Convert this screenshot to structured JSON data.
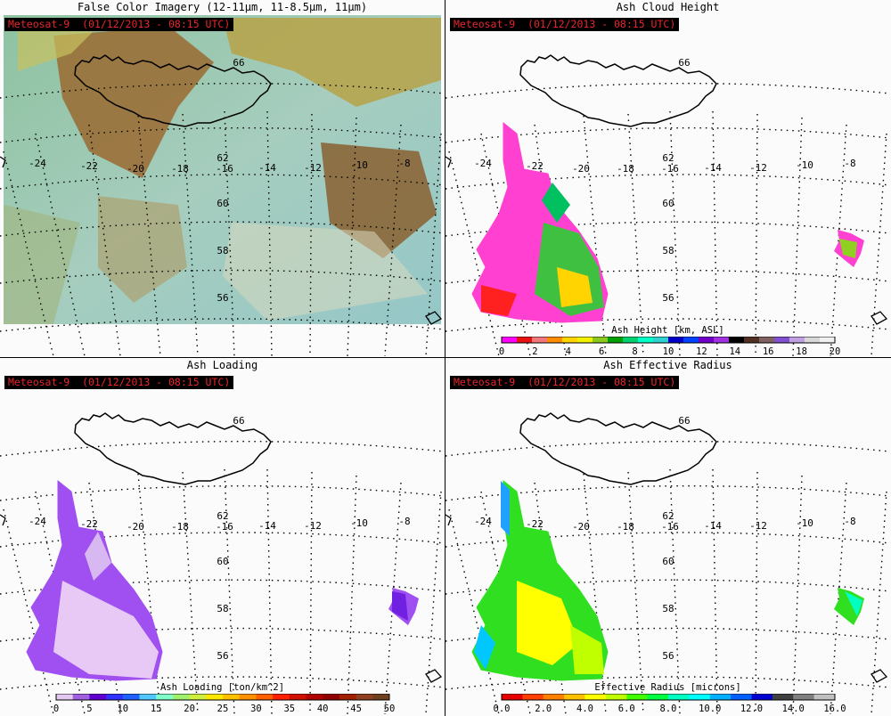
{
  "panels": [
    {
      "id": "false-color",
      "title": "False Color Imagery (12-11μm, 11-8.5μm, 11μm)",
      "satellite_label": "Meteosat-9  (01/12/2013 - 08:15 UTC)",
      "colorbar": null
    },
    {
      "id": "ash-height",
      "title": "Ash Cloud Height",
      "satellite_label": "Meteosat-9  (01/12/2013 - 08:15 UTC)",
      "colorbar": {
        "title": "Ash Height [km, ASL]",
        "ticks": [
          "0",
          "2",
          "4",
          "6",
          "8",
          "10",
          "12",
          "14",
          "16",
          "18",
          "20"
        ],
        "colors": [
          "#ff00ff",
          "#e81010",
          "#f07878",
          "#ff8c00",
          "#ffd400",
          "#f0f000",
          "#8cc81e",
          "#00a000",
          "#00d070",
          "#00ffc8",
          "#30d0d0",
          "#0000c8",
          "#0040ff",
          "#7000c8",
          "#a030e0",
          "#000000",
          "#503020",
          "#806060",
          "#8050d0",
          "#c0a0e0",
          "#d8d8d8",
          "#f0f0f0"
        ]
      }
    },
    {
      "id": "ash-loading",
      "title": "Ash Loading",
      "satellite_label": "Meteosat-9  (01/12/2013 - 08:15 UTC)",
      "colorbar": {
        "title": "Ash Loading [ton/km^2]",
        "ticks": [
          "0",
          "5",
          "10",
          "15",
          "20",
          "25",
          "30",
          "35",
          "40",
          "45",
          "50"
        ],
        "colors": [
          "#e4c8f0",
          "#a060e0",
          "#6000d0",
          "#3030ff",
          "#2060ff",
          "#50c8ff",
          "#80ffc8",
          "#a0f070",
          "#d0f040",
          "#ffe800",
          "#ffc000",
          "#ff9000",
          "#ff6000",
          "#ff2000",
          "#d01000",
          "#b00000",
          "#900000",
          "#a02000",
          "#904020",
          "#704020"
        ]
      }
    },
    {
      "id": "ash-radius",
      "title": "Ash Effective Radius",
      "satellite_label": "Meteosat-9  (01/12/2013 - 08:15 UTC)",
      "colorbar": {
        "title": "Effective Radius [microns]",
        "ticks": [
          "0.0",
          "2.0",
          "4.0",
          "6.0",
          "8.0",
          "10.0",
          "12.0",
          "14.0",
          "16.0"
        ],
        "colors": [
          "#e80000",
          "#ff4000",
          "#ff8000",
          "#ffc000",
          "#ffff00",
          "#c0ff00",
          "#40ff00",
          "#00ff40",
          "#00ffc0",
          "#00ffff",
          "#00b0ff",
          "#0060ff",
          "#0000d0",
          "#404040",
          "#808080",
          "#c0c0c0"
        ]
      }
    }
  ],
  "map": {
    "lon_labels": [
      "-24",
      "-22",
      "-20",
      "-18",
      "-16",
      "-14",
      "-12",
      "-10",
      "-8"
    ],
    "lat_labels": [
      "62",
      "60",
      "58",
      "56"
    ],
    "inner_label": "66"
  }
}
